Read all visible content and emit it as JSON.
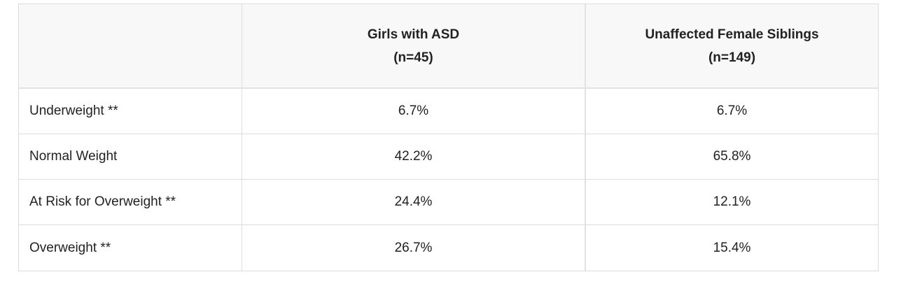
{
  "table": {
    "header": {
      "corner": "",
      "col1": {
        "title": "Girls with ASD",
        "n": "(n=45)"
      },
      "col2": {
        "title": "Unaffected Female Siblings",
        "n": "(n=149)"
      }
    },
    "rows": [
      {
        "label": "Underweight **",
        "asd": "6.7%",
        "siblings": "6.7%"
      },
      {
        "label": "Normal Weight",
        "asd": "42.2%",
        "siblings": "65.8%"
      },
      {
        "label": "At Risk for Overweight **",
        "asd": "24.4%",
        "siblings": "12.1%"
      },
      {
        "label": "Overweight **",
        "asd": "26.7%",
        "siblings": "15.4%"
      }
    ]
  }
}
